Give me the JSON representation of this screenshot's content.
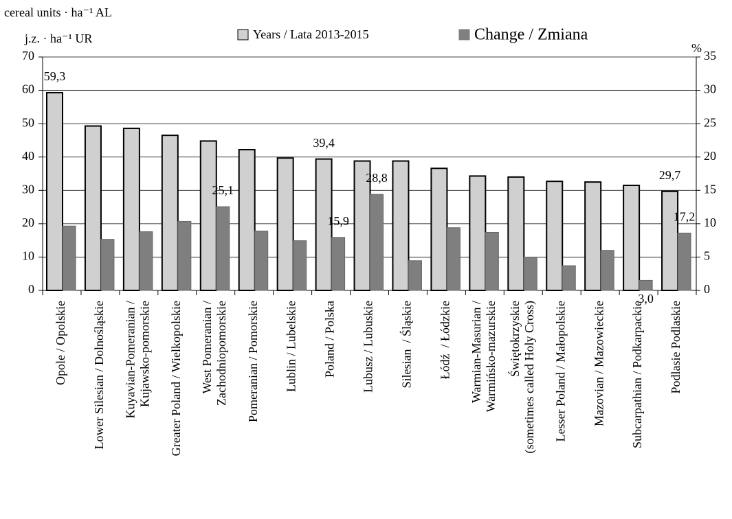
{
  "chart_data": {
    "type": "bar",
    "y_label": "cereal units · ha⁻¹ AL",
    "y_label_2": "j.z. · ha⁻¹ UR",
    "y2_label": "%",
    "categories": [
      "Opole / Opolskie",
      "Lower Silesian / Dolnośląskie",
      "Kuyavian-Pomeranian /\nKujawsko-pomorskie",
      "Greater Poland / Wielkopolskie",
      "West Pomeranian /\nZachodniopomorskie",
      "Pomeranian / Pomorskie",
      "Lublin / Lubelskie",
      "Poland / Polska",
      "Lubusz / Lubuskie",
      "Silesian  / Śląskie",
      "Łódź  / Łódzkie",
      "Warmian-Masurian /\nWarmińsko-mazurskie",
      "Świętokrzyskie\n(sometimes called Holy Cross)",
      "Lesser Poland / Małopolskie",
      "Mazovian / Mazowieckie",
      "Subcarpathian / Podkarpackie",
      "Podlasie Podlaskie"
    ],
    "series": [
      {
        "name": "Years / Lata 2013-2015",
        "color": "#d0d0d0",
        "values": [
          59.3,
          49.3,
          48.6,
          46.5,
          44.8,
          42.2,
          39.7,
          39.4,
          38.8,
          38.8,
          36.6,
          34.3,
          34.0,
          32.7,
          32.5,
          31.5,
          29.7
        ],
        "value_labels": [
          "59,3",
          null,
          null,
          null,
          null,
          null,
          null,
          "39,4",
          null,
          null,
          null,
          null,
          null,
          null,
          null,
          null,
          "29,7"
        ]
      },
      {
        "name": "Change / Zmiana",
        "color": "#7f7f7f",
        "values": [
          19.3,
          15.3,
          17.6,
          20.7,
          25.1,
          17.8,
          14.9,
          15.9,
          28.8,
          8.9,
          18.8,
          17.4,
          10.0,
          7.4,
          12.0,
          3.0,
          17.2
        ],
        "value_labels": [
          null,
          null,
          null,
          null,
          "25,1",
          null,
          null,
          "15,9",
          "28,8",
          null,
          null,
          null,
          null,
          null,
          null,
          "3,0",
          "17,2"
        ]
      }
    ],
    "ylim": [
      0,
      70
    ],
    "yticks": [
      0,
      10,
      20,
      30,
      40,
      50,
      60,
      70
    ],
    "y2lim": [
      0,
      35
    ],
    "y2ticks": [
      0,
      5,
      10,
      15,
      20,
      25,
      30,
      35
    ],
    "grid": true
  }
}
